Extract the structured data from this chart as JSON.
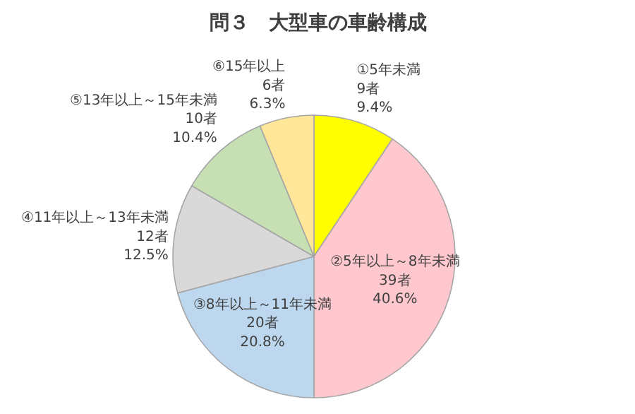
{
  "chart_data": {
    "type": "pie",
    "title": "問３　大型車の車齢構成",
    "categories": [
      "①5年未満",
      "②5年以上～8年未満",
      "③8年以上～11年未満",
      "④11年以上～13年未満",
      "⑤13年以上～15年未満",
      "⑥15年以上"
    ],
    "values": [
      9,
      39,
      20,
      12,
      10,
      6
    ],
    "value_labels": [
      "9者 9.4%",
      "39者 40.6%",
      "20者 20.8%",
      "12者 12.5%",
      "10者 10.4%",
      "6者 6.3%"
    ],
    "colors": [
      "#ffff00",
      "#ffc7ce",
      "#bdd7ee",
      "#d9d9d9",
      "#c6e0b4",
      "#ffe699"
    ]
  }
}
